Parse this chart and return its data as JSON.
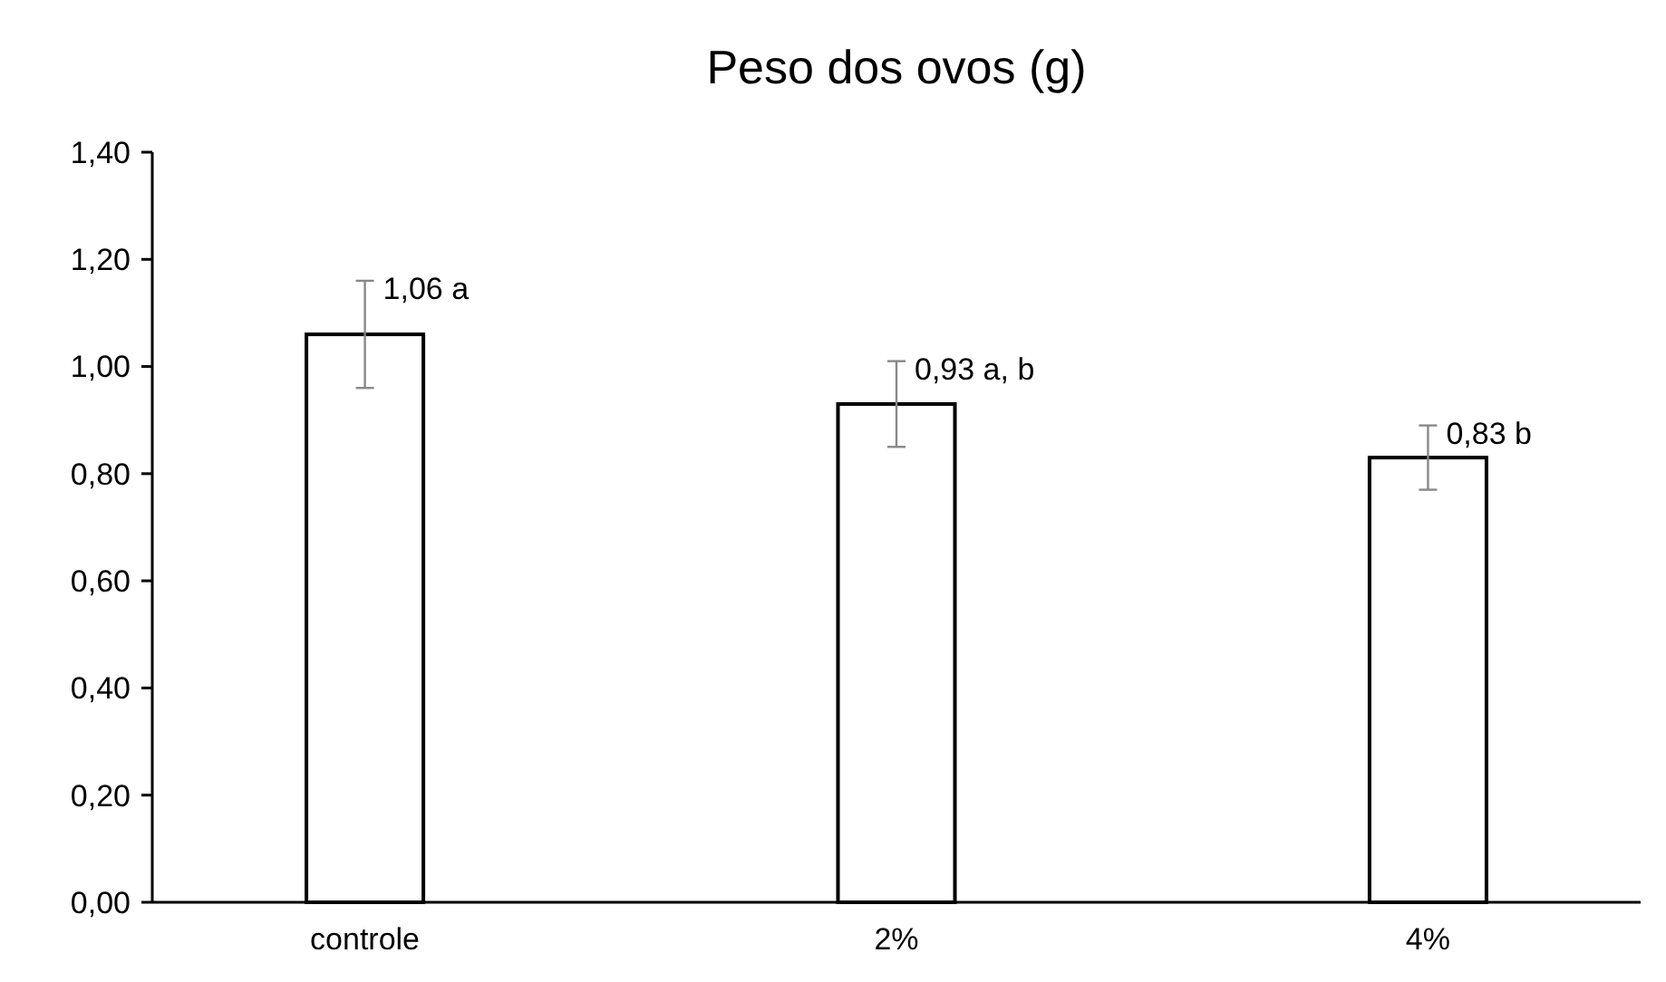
{
  "chart_data": {
    "type": "bar",
    "title": "Peso dos ovos (g)",
    "categories": [
      "controle",
      "2%",
      "4%"
    ],
    "values": [
      1.06,
      0.93,
      0.83
    ],
    "value_labels": [
      "1,06 a",
      "0,93 a, b",
      "0,83 b"
    ],
    "errors": [
      0.1,
      0.08,
      0.06
    ],
    "color": "#ffffff",
    "ylim": [
      0,
      1.4
    ],
    "yticks": [
      {
        "value": 0,
        "label": "0,00"
      },
      {
        "value": 0.2,
        "label": "0,20"
      },
      {
        "value": 0.4,
        "label": "0,40"
      },
      {
        "value": 0.6,
        "label": "0,60"
      },
      {
        "value": 0.8,
        "label": "0,80"
      },
      {
        "value": 1,
        "label": "1,00"
      },
      {
        "value": 1.2,
        "label": "1,20"
      },
      {
        "value": 1.4,
        "label": "1,40"
      }
    ],
    "grid": false
  }
}
